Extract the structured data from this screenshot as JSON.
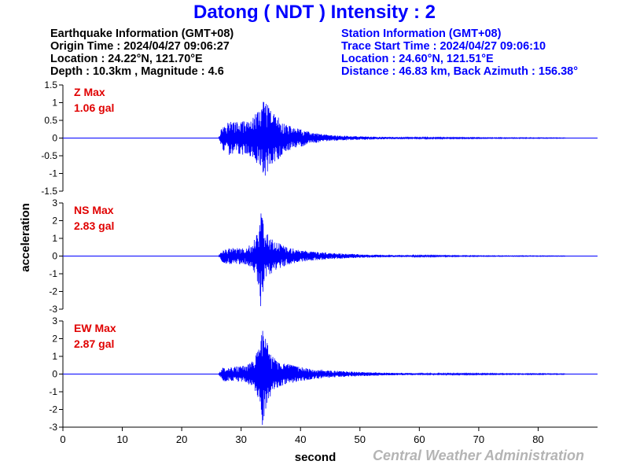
{
  "header": {
    "title": "Datong ( NDT ) Intensity : 2"
  },
  "earthquake_info": {
    "heading": "Earthquake Information (GMT+08)",
    "origin_time": "Origin Time : 2024/04/27 09:06:27",
    "location": "Location : 24.22°N, 121.70°E",
    "depth_magnitude": "Depth : 10.3km , Magnitude : 4.6"
  },
  "station_info": {
    "heading": "Station Information (GMT+08)",
    "trace_start": "Trace Start Time : 2024/04/27 09:06:10",
    "location": "Location : 24.60°N, 121.51°E",
    "distance": "Distance : 46.83 km, Back Azimuth : 156.38°"
  },
  "footer": {
    "credit": "Central Weather Administration"
  },
  "colors": {
    "title": "#0000ff",
    "trace": "#0000ff",
    "max_label": "#e00000",
    "credit": "#b4b4b4"
  },
  "chart_data": {
    "type": "line",
    "xlabel": "second",
    "ylabel": "acceleration",
    "xlim": [
      0,
      90
    ],
    "xticks": [
      "0",
      "10",
      "20",
      "30",
      "40",
      "50",
      "60",
      "70",
      "80"
    ],
    "grid": false,
    "panels": [
      {
        "component": "Z",
        "max_label": "Z Max",
        "max_value": "1.06 gal",
        "ylim": [
          -1.5,
          1.5
        ],
        "yticks": [
          "1.5",
          "1",
          "0.5",
          "0",
          "-0.5",
          "-1",
          "-1.5"
        ],
        "ytick_values": [
          1.5,
          1,
          0.5,
          0,
          -0.5,
          -1,
          -1.5
        ],
        "peak": 1.06,
        "envelope": [
          [
            0,
            0.0
          ],
          [
            26.2,
            0.0
          ],
          [
            26.5,
            0.2
          ],
          [
            27,
            0.4
          ],
          [
            28,
            0.5
          ],
          [
            29,
            0.45
          ],
          [
            30,
            0.5
          ],
          [
            31,
            0.45
          ],
          [
            32,
            0.6
          ],
          [
            33,
            0.8
          ],
          [
            33.5,
            1.0
          ],
          [
            34,
            1.06
          ],
          [
            35,
            0.8
          ],
          [
            36,
            0.65
          ],
          [
            37,
            0.45
          ],
          [
            38,
            0.35
          ],
          [
            40,
            0.25
          ],
          [
            42,
            0.15
          ],
          [
            45,
            0.08
          ],
          [
            50,
            0.05
          ],
          [
            55,
            0.03
          ],
          [
            60,
            0.02
          ],
          [
            70,
            0.012
          ],
          [
            84.5,
            0.008
          ],
          [
            84.6,
            0.0
          ],
          [
            90,
            0.0
          ]
        ]
      },
      {
        "component": "NS",
        "max_label": "NS Max",
        "max_value": "2.83 gal",
        "ylim": [
          -3,
          3
        ],
        "yticks": [
          "3",
          "2",
          "1",
          "0",
          "-1",
          "-2",
          "-3"
        ],
        "ytick_values": [
          3,
          2,
          1,
          0,
          -1,
          -2,
          -3
        ],
        "peak": 2.83,
        "envelope": [
          [
            0,
            0.0
          ],
          [
            26.2,
            0.0
          ],
          [
            26.5,
            0.2
          ],
          [
            27,
            0.4
          ],
          [
            28,
            0.45
          ],
          [
            30,
            0.45
          ],
          [
            31,
            0.5
          ],
          [
            32,
            0.8
          ],
          [
            32.5,
            1.2
          ],
          [
            33,
            1.8
          ],
          [
            33.3,
            2.83
          ],
          [
            34,
            1.5
          ],
          [
            35,
            1.0
          ],
          [
            36,
            0.8
          ],
          [
            38,
            0.5
          ],
          [
            40,
            0.35
          ],
          [
            42,
            0.25
          ],
          [
            45,
            0.18
          ],
          [
            50,
            0.1
          ],
          [
            55,
            0.06
          ],
          [
            60,
            0.04
          ],
          [
            70,
            0.02
          ],
          [
            84.5,
            0.015
          ],
          [
            84.6,
            0.0
          ],
          [
            90,
            0.0
          ]
        ]
      },
      {
        "component": "EW",
        "max_label": "EW Max",
        "max_value": "2.87 gal",
        "ylim": [
          -3,
          3
        ],
        "yticks": [
          "3",
          "2",
          "1",
          "0",
          "-1",
          "-2",
          "-3"
        ],
        "ytick_values": [
          3,
          2,
          1,
          0,
          -1,
          -2,
          -3
        ],
        "peak": 2.87,
        "envelope": [
          [
            0,
            0.0
          ],
          [
            26.2,
            0.0
          ],
          [
            26.5,
            0.2
          ],
          [
            27,
            0.4
          ],
          [
            28,
            0.4
          ],
          [
            30,
            0.45
          ],
          [
            31,
            0.5
          ],
          [
            32,
            0.8
          ],
          [
            33,
            1.5
          ],
          [
            33.6,
            2.87
          ],
          [
            34,
            2.2
          ],
          [
            35,
            1.2
          ],
          [
            36,
            0.8
          ],
          [
            38,
            0.55
          ],
          [
            40,
            0.4
          ],
          [
            42,
            0.3
          ],
          [
            45,
            0.2
          ],
          [
            50,
            0.12
          ],
          [
            55,
            0.07
          ],
          [
            60,
            0.05
          ],
          [
            70,
            0.03
          ],
          [
            84.5,
            0.02
          ],
          [
            84.6,
            0.0
          ],
          [
            90,
            0.0
          ]
        ]
      }
    ]
  }
}
